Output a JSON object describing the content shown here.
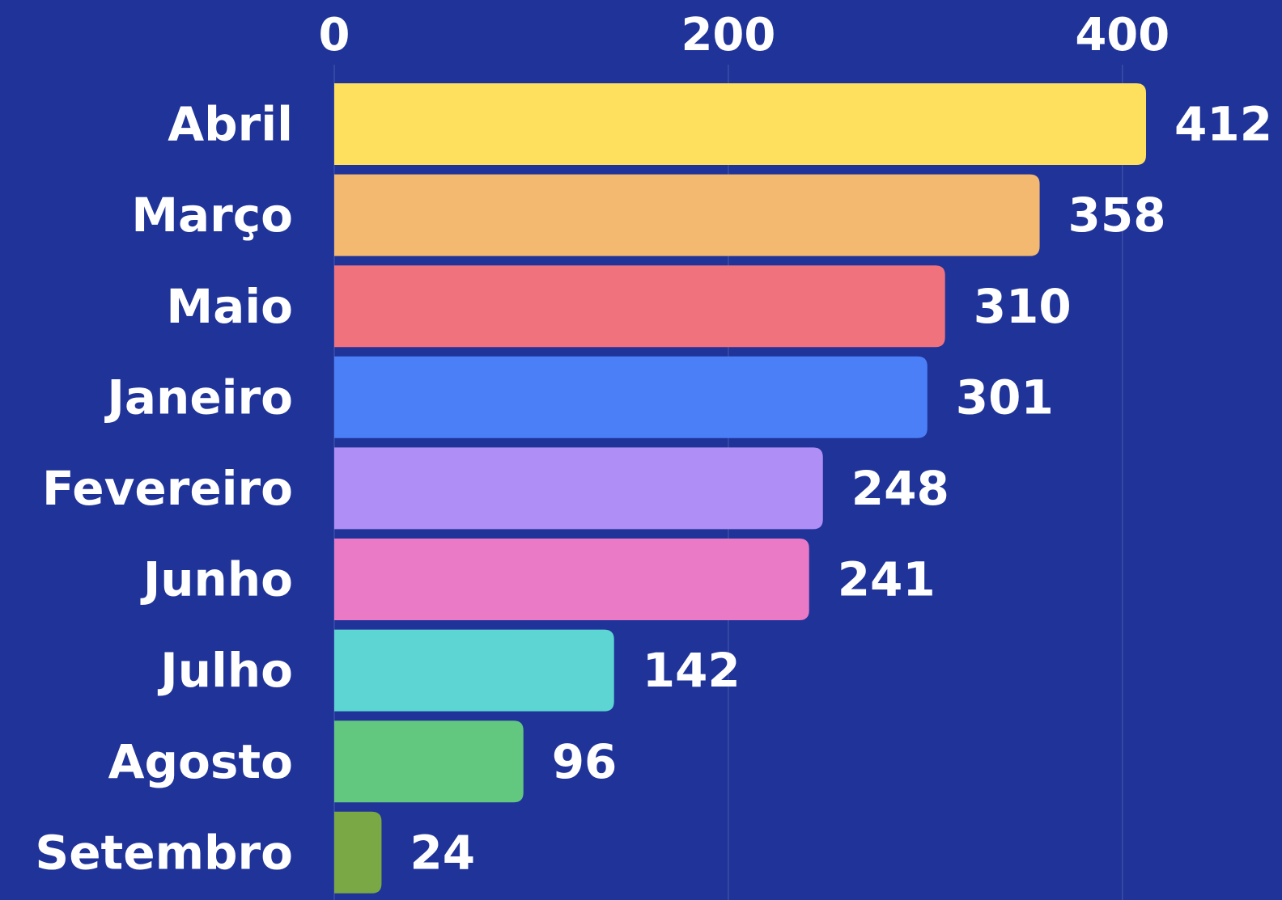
{
  "chart_data": {
    "type": "barh",
    "categories": [
      "Abril",
      "Março",
      "Maio",
      "Janeiro",
      "Fevereiro",
      "Junho",
      "Julho",
      "Agosto",
      "Setembro"
    ],
    "values": [
      412,
      358,
      310,
      301,
      248,
      241,
      142,
      96,
      24
    ],
    "colors": [
      "#ffdf5e",
      "#f3b970",
      "#ef727d",
      "#4b7ff7",
      "#af8ef5",
      "#ea79c6",
      "#5cd5d3",
      "#62c87f",
      "#7aa844"
    ],
    "xlim": [
      0,
      481
    ],
    "xticks": [
      0,
      200,
      400
    ],
    "grid": true
  }
}
